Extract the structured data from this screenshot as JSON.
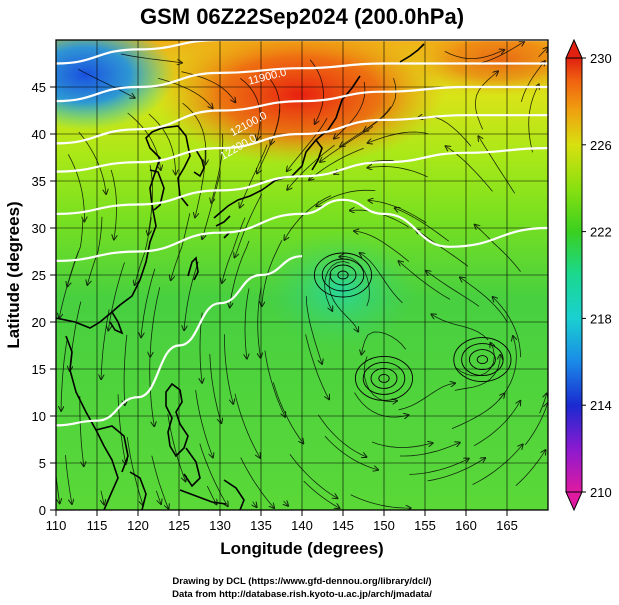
{
  "chart_data": {
    "type": "heatmap",
    "title": "GSM 06Z22Sep2024 (200.0hPa)",
    "xlabel": "Longitude (degrees)",
    "ylabel": "Latitude (degrees)",
    "xlim": [
      110,
      170
    ],
    "ylim": [
      0,
      50
    ],
    "xticks": [
      "110",
      "115",
      "120",
      "125",
      "130",
      "135",
      "140",
      "145",
      "150",
      "155",
      "160",
      "165"
    ],
    "yticks": [
      "0",
      "5",
      "10",
      "15",
      "20",
      "25",
      "30",
      "35",
      "40",
      "45"
    ],
    "grid": true,
    "colorbar": {
      "min": 210,
      "max": 230,
      "ticks": [
        "210",
        "214",
        "218",
        "222",
        "226",
        "230"
      ],
      "colors": [
        "#e01aa0",
        "#8a1ad0",
        "#1a2ad0",
        "#1a8ae8",
        "#1ad0d0",
        "#1ad890",
        "#3ad020",
        "#8ae010",
        "#d8e010",
        "#f0a010",
        "#f06010",
        "#e02010"
      ],
      "placement": "right"
    },
    "contour_labels": [
      "11900.0",
      "12100.0",
      "12200.0"
    ],
    "contour_lines_approx_lat": [
      {
        "x": [
          110,
          120,
          130,
          140,
          150,
          160,
          170
        ],
        "y": [
          47.5,
          49.0,
          50.0,
          50.0,
          50.0,
          50.0,
          50.0
        ]
      },
      {
        "x": [
          110,
          120,
          130,
          140,
          150,
          160,
          170
        ],
        "y": [
          43.5,
          45.0,
          46.5,
          47.0,
          47.5,
          47.5,
          47.5
        ]
      },
      {
        "x": [
          110,
          120,
          130,
          140,
          150,
          160,
          170
        ],
        "y": [
          39.0,
          40.5,
          42.5,
          43.5,
          44.5,
          45.0,
          45.0
        ]
      },
      {
        "x": [
          110,
          120,
          130,
          140,
          150,
          160,
          170
        ],
        "y": [
          36.0,
          37.0,
          38.5,
          40.0,
          41.5,
          42.0,
          42.0
        ]
      },
      {
        "x": [
          110,
          120,
          130,
          140,
          150,
          160,
          170
        ],
        "y": [
          31.5,
          32.5,
          34.0,
          35.5,
          37.0,
          38.0,
          38.5
        ]
      },
      {
        "x": [
          110,
          120,
          130,
          140,
          145,
          150,
          158,
          170
        ],
        "y": [
          26.5,
          27.5,
          29.5,
          31.5,
          33.0,
          31.5,
          28.0,
          30.0
        ]
      },
      {
        "x": [
          110,
          115,
          120,
          125,
          130,
          135,
          140
        ],
        "y": [
          9.0,
          9.5,
          12.0,
          17.5,
          22.0,
          25.0,
          27.0
        ]
      }
    ],
    "vortex_centers": [
      {
        "lon": 145,
        "lat": 25
      },
      {
        "lon": 150,
        "lat": 14
      },
      {
        "lon": 162,
        "lat": 16
      }
    ]
  },
  "footer": {
    "line1": "Drawing by DCL (https://www.gfd-dennou.org/library/dcl/)",
    "line2": "Data from http://database.rish.kyoto-u.ac.jp/arch/jmadata/"
  }
}
